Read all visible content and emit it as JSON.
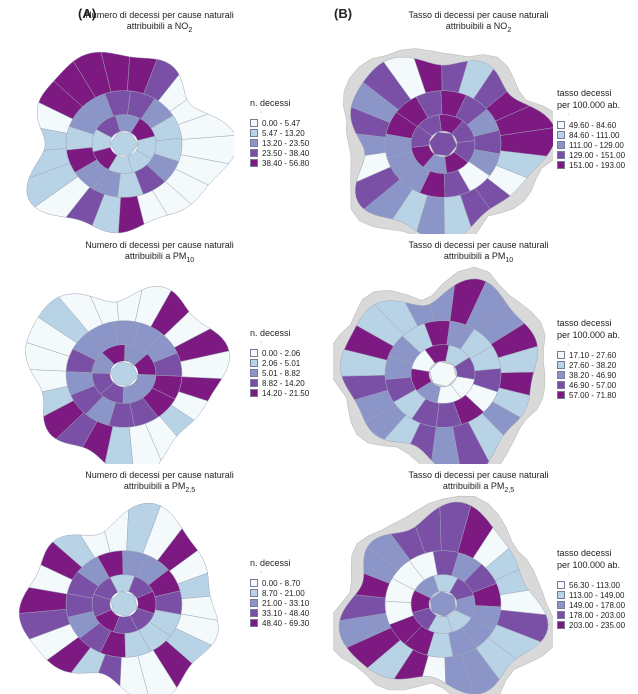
{
  "columns": {
    "a": "(A)",
    "b": "(B)"
  },
  "panels": [
    {
      "title": "Numero di decessi per cause naturali",
      "subtitle_pre": "attribuibili a NO",
      "sub": "2",
      "legend_title": "n. decessi",
      "legend_title2": "",
      "classes": [
        "0.00 - 5.47",
        "5.47 - 13.20",
        "13.20 - 23.50",
        "23.50 - 38.40",
        "38.40 - 56.80"
      ],
      "map_style": "count"
    },
    {
      "title": "Tasso di decessi per cause naturali",
      "subtitle_pre": "attribuibili a NO",
      "sub": "2",
      "legend_title": "tasso decessi",
      "legend_title2": "per 100.000 ab.",
      "classes": [
        "49.60 - 84.60",
        "84.60 - 111.00",
        "111.00 - 129.00",
        "129.00 - 151.00",
        "151.00 - 193.00"
      ],
      "map_style": "rate"
    },
    {
      "title": "Numero di decessi per cause naturali",
      "subtitle_pre": "attribuibili a PM",
      "sub": "10",
      "legend_title": "n. decessi",
      "legend_title2": "",
      "classes": [
        "0.00 - 2.06",
        "2.06 - 5.01",
        "5.01 - 8.82",
        "8.82 - 14.20",
        "14.20 - 21.50"
      ],
      "map_style": "count"
    },
    {
      "title": "Tasso di decessi per cause naturali",
      "subtitle_pre": "attribuibili a PM",
      "sub": "10",
      "legend_title": "tasso decessi",
      "legend_title2": "per 100.000 ab.",
      "classes": [
        "17.10 - 27.60",
        "27.60 - 38.20",
        "38.20 - 46.90",
        "46.90 - 57.00",
        "57.00 - 71.80"
      ],
      "map_style": "rate"
    },
    {
      "title": "Numero di decessi per cause naturali",
      "subtitle_pre": "attribuibili a PM",
      "sub": "2,5",
      "legend_title": "n. decessi",
      "legend_title2": "",
      "classes": [
        "0.00 - 8.70",
        "8.70 - 21.00",
        "21.00 - 33.10",
        "33.10 - 48.40",
        "48.40 - 69.30"
      ],
      "map_style": "count"
    },
    {
      "title": "Tasso di decessi per cause naturali",
      "subtitle_pre": "attribuibili a PM",
      "sub": "2,5",
      "legend_title": "tasso decessi",
      "legend_title2": "per 100.000 ab.",
      "classes": [
        "56.30 - 113.00",
        "113.00 - 149.00",
        "149.00 - 178.00",
        "178.00 - 203.00",
        "203.00 - 235.00"
      ],
      "map_style": "rate"
    }
  ],
  "colors": {
    "classes": [
      "#f4f9fb",
      "#b9d3e6",
      "#8b95c8",
      "#7a4fa6",
      "#7d1a82"
    ],
    "nodata": "#d9d9d9",
    "border": "#9fa6b8"
  }
}
